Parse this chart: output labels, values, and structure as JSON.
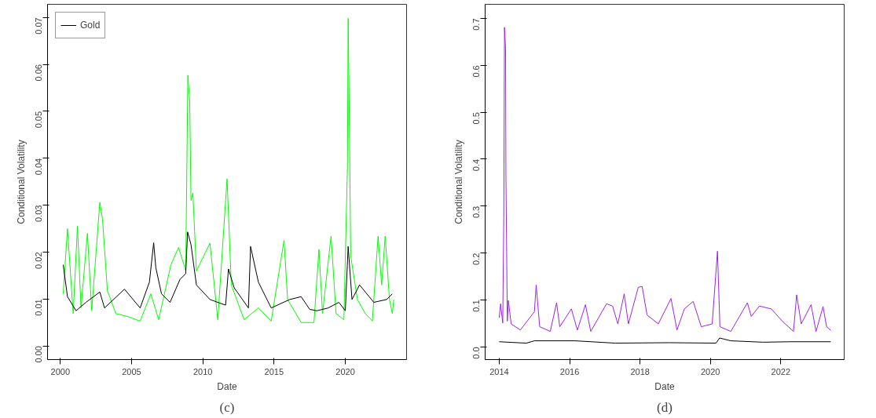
{
  "chart_data": [
    {
      "type": "line",
      "xlabel": "Date",
      "ylabel": "Conditional Volatility",
      "annotations": [
        "(c)"
      ],
      "legend": "top left",
      "grid": false,
      "xlim": [
        1999.1,
        2024.3
      ],
      "ylim": [
        -0.0029,
        0.0728
      ],
      "xticks": [
        2000,
        2005,
        2010,
        2015,
        2020
      ],
      "yticks": [
        {
          "value": 0,
          "label": "0.00"
        },
        {
          "value": 0.01,
          "label": "0.01"
        },
        {
          "value": 0.02,
          "label": "0.02"
        },
        {
          "value": 0.03,
          "label": "0.03"
        },
        {
          "value": 0.04,
          "label": "0.04"
        },
        {
          "value": 0.05,
          "label": "0.05"
        },
        {
          "value": 0.06,
          "label": "0.06"
        },
        {
          "value": 0.07,
          "label": "0.07"
        }
      ],
      "series": [
        {
          "color": "#00ff00",
          "x": [
            2000.2,
            2000.5,
            2000.9,
            2001.2,
            2001.45,
            2001.9,
            2002.2,
            2002.77,
            2002.96,
            2003.3,
            2003.9,
            2004.8,
            2005.6,
            2006.35,
            2006.9,
            2007.76,
            2008.3,
            2008.8,
            2008.95,
            2009.08,
            2009.17,
            2009.3,
            2009.55,
            2010.5,
            2011.05,
            2011.7,
            2012.0,
            2012.9,
            2013.9,
            2014.8,
            2015.7,
            2015.95,
            2016.9,
            2017.8,
            2018.15,
            2018.4,
            2019.0,
            2019.35,
            2019.9,
            2020.15,
            2020.2,
            2020.26,
            2020.38,
            2020.85,
            2021.4,
            2021.9,
            2022.3,
            2022.55,
            2022.8,
            2023.1,
            2023.3,
            2023.4
          ],
          "values": [
            0.0111,
            0.025,
            0.0069,
            0.0255,
            0.0081,
            0.024,
            0.0075,
            0.0306,
            0.027,
            0.0118,
            0.0069,
            0.0062,
            0.0053,
            0.0111,
            0.0056,
            0.0173,
            0.021,
            0.016,
            0.0577,
            0.052,
            0.031,
            0.0326,
            0.016,
            0.0219,
            0.0056,
            0.0356,
            0.013,
            0.0056,
            0.0081,
            0.0053,
            0.0225,
            0.0099,
            0.005,
            0.005,
            0.0206,
            0.0069,
            0.0234,
            0.0069,
            0.0056,
            0.0381,
            0.0698,
            0.0546,
            0.0191,
            0.0099,
            0.0069,
            0.0053,
            0.0234,
            0.013,
            0.0234,
            0.0099,
            0.0069,
            0.0099
          ]
        },
        {
          "name": "Gold",
          "color": "#000000",
          "x": [
            2000.2,
            2000.5,
            2001.1,
            2001.8,
            2002.77,
            2003.1,
            2004.5,
            2005.6,
            2006.25,
            2006.55,
            2006.7,
            2007.1,
            2007.7,
            2008.4,
            2008.8,
            2008.93,
            2009.17,
            2009.55,
            2010.5,
            2011.6,
            2011.8,
            2012.2,
            2013.2,
            2013.35,
            2013.9,
            2014.8,
            2016.1,
            2016.9,
            2017.5,
            2018.0,
            2018.8,
            2019.55,
            2020.0,
            2020.2,
            2020.47,
            2021.0,
            2022.0,
            2022.9,
            2023.3
          ],
          "values": [
            0.0173,
            0.0105,
            0.0075,
            0.0093,
            0.0115,
            0.0081,
            0.0121,
            0.0081,
            0.0136,
            0.022,
            0.0167,
            0.0111,
            0.0093,
            0.0142,
            0.0154,
            0.0243,
            0.0216,
            0.013,
            0.0099,
            0.0087,
            0.0164,
            0.0124,
            0.0081,
            0.0212,
            0.0136,
            0.0081,
            0.0099,
            0.0105,
            0.0078,
            0.0075,
            0.0081,
            0.0093,
            0.0075,
            0.0212,
            0.0099,
            0.013,
            0.0093,
            0.0099,
            0.0111
          ]
        }
      ]
    },
    {
      "type": "line",
      "xlabel": "Date",
      "ylabel": "Conditional Volatility",
      "annotations": [
        "(d)"
      ],
      "grid": false,
      "xlim": [
        2013.6,
        2023.8
      ],
      "ylim": [
        -0.027,
        0.73
      ],
      "xticks": [
        2014,
        2016,
        2018,
        2020,
        2022
      ],
      "yticks": [
        {
          "value": 0,
          "label": "0.0"
        },
        0.1,
        0.2,
        0.3,
        0.4,
        0.5,
        0.6,
        0.7
      ],
      "series": [
        {
          "color": "#a020f0",
          "x": [
            2014.0,
            2014.04,
            2014.1,
            2014.13,
            2014.15,
            2014.18,
            2014.19,
            2014.23,
            2014.26,
            2014.34,
            2014.6,
            2015.0,
            2015.05,
            2015.15,
            2015.45,
            2015.63,
            2015.72,
            2016.05,
            2016.22,
            2016.45,
            2016.6,
            2017.05,
            2017.22,
            2017.37,
            2017.55,
            2017.67,
            2017.95,
            2018.06,
            2018.2,
            2018.52,
            2018.88,
            2019.05,
            2019.26,
            2019.51,
            2019.74,
            2020.05,
            2020.2,
            2020.27,
            2020.58,
            2021.05,
            2021.16,
            2021.39,
            2021.73,
            2022.04,
            2022.36,
            2022.45,
            2022.58,
            2022.86,
            2023.0,
            2023.2,
            2023.3,
            2023.42
          ],
          "values": [
            0.062,
            0.092,
            0.051,
            0.275,
            0.681,
            0.635,
            0.368,
            0.055,
            0.099,
            0.049,
            0.036,
            0.075,
            0.132,
            0.043,
            0.033,
            0.094,
            0.043,
            0.081,
            0.036,
            0.09,
            0.033,
            0.092,
            0.087,
            0.049,
            0.113,
            0.049,
            0.127,
            0.129,
            0.068,
            0.049,
            0.103,
            0.036,
            0.081,
            0.097,
            0.043,
            0.049,
            0.204,
            0.043,
            0.033,
            0.094,
            0.065,
            0.087,
            0.081,
            0.055,
            0.033,
            0.111,
            0.049,
            0.09,
            0.033,
            0.086,
            0.043,
            0.035
          ]
        },
        {
          "color": "#000000",
          "x": [
            2014.0,
            2014.77,
            2015.0,
            2016.15,
            2017.3,
            2018.82,
            2020.16,
            2020.26,
            2020.58,
            2021.5,
            2022.27,
            2023.42
          ],
          "values": [
            0.011,
            0.008,
            0.013,
            0.013,
            0.008,
            0.009,
            0.008,
            0.019,
            0.013,
            0.01,
            0.011,
            0.011
          ]
        }
      ]
    }
  ]
}
